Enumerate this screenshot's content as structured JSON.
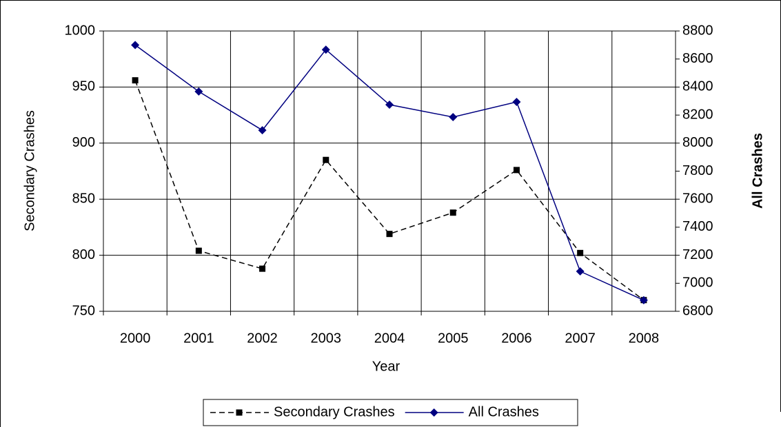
{
  "chart_data": {
    "type": "line",
    "categories": [
      "2000",
      "2001",
      "2002",
      "2003",
      "2004",
      "2005",
      "2006",
      "2007",
      "2008"
    ],
    "series": [
      {
        "name": "Secondary Crashes",
        "color": "#000000",
        "marker": "square",
        "dash": true,
        "axis": "y",
        "values": [
          956,
          804,
          788,
          885,
          819,
          838,
          876,
          802,
          760
        ]
      },
      {
        "name": "All Crashes",
        "color": "#000080",
        "marker": "diamond",
        "dash": false,
        "axis": "y2",
        "values": [
          8700,
          8368,
          8092,
          8667,
          8274,
          8186,
          8294,
          7085,
          6879
        ]
      }
    ],
    "x_label": "Year",
    "y_label": "Secondary Crashes",
    "y2_label": "All Crashes",
    "ylim": [
      750,
      1000
    ],
    "yticks": [
      750,
      800,
      850,
      900,
      950,
      1000
    ],
    "y2lim": [
      6800,
      8800
    ],
    "y2ticks": [
      6800,
      7000,
      7200,
      7400,
      7600,
      7800,
      8000,
      8200,
      8400,
      8600,
      8800
    ],
    "grid": true,
    "legend": "bottom"
  }
}
